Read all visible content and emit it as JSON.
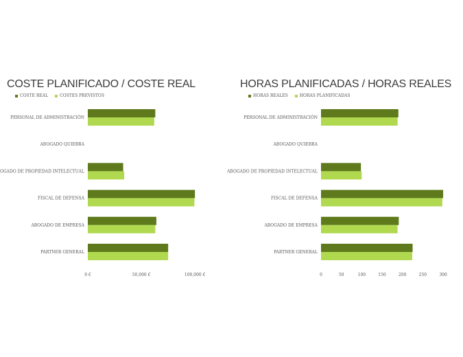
{
  "chart_data": [
    {
      "type": "bar",
      "orientation": "horizontal",
      "title": "COSTE PLANIFICADO / COSTE REAL",
      "categories": [
        "PERSONAL DE ADMINISTRACIÓN",
        "ABOGADO QUIEBRA",
        "ABOGADO DE PROPIEDAD INTELECTUAL",
        "FISCAL DE DEFENSA",
        "ABOGADO DE EMPRESA",
        "PARTNER GENERAL"
      ],
      "series": [
        {
          "name": "COSTE REAL",
          "color": "#5e7a1c",
          "values": [
            63000,
            0,
            33000,
            100000,
            64000,
            75000
          ]
        },
        {
          "name": "COSTES PREVISTOS",
          "color": "#b0d94f",
          "values": [
            62000,
            0,
            34000,
            99500,
            63000,
            75000
          ]
        }
      ],
      "xlim": [
        0,
        105000
      ],
      "ticks": [
        0,
        50000,
        100000
      ],
      "tick_labels": [
        "0 €",
        "50,000 €",
        "100,000 €"
      ],
      "legend": "top-left",
      "grid": false
    },
    {
      "type": "bar",
      "orientation": "horizontal",
      "title": "HORAS PLANIFICADAS / HORAS REALES",
      "categories": [
        "PERSONAL DE ADMINISTRACIÓN",
        "ABOGADO QUIEBRA",
        "ABOGADO DE PROPIEDAD INTELECTUAL",
        "FISCAL DE DEFENSA",
        "ABOGADO DE EMPRESA",
        "PARTNER GENERAL"
      ],
      "series": [
        {
          "name": "HORAS REALES",
          "color": "#5e7a1c",
          "values": [
            190,
            0,
            98,
            300,
            191,
            225
          ]
        },
        {
          "name": "HORAS PLANIFICADAS",
          "color": "#b0d94f",
          "values": [
            188,
            0,
            100,
            298,
            188,
            224
          ]
        }
      ],
      "xlim": [
        0,
        310
      ],
      "ticks": [
        0,
        50,
        100,
        150,
        200,
        250,
        300
      ],
      "tick_labels": [
        "0",
        "50",
        "100",
        "150",
        "200",
        "250",
        "300"
      ],
      "legend": "top-left",
      "grid": false
    }
  ]
}
